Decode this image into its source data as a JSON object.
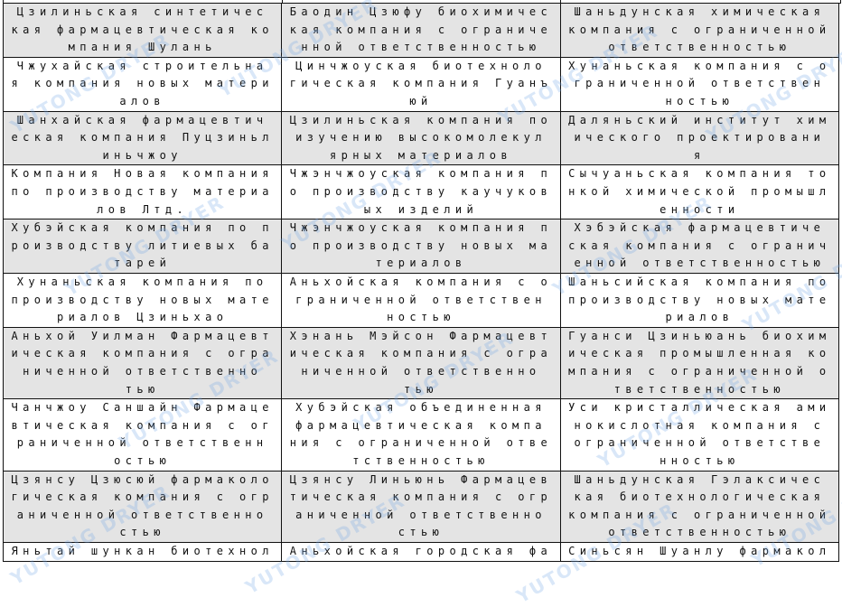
{
  "watermark": "YUTONG DRYER",
  "colors": {
    "row_gray": "#e4e4e4",
    "row_white": "#ffffff",
    "border": "#111111",
    "watermark": "#78aae6"
  },
  "table": {
    "rows": [
      {
        "shade": "gray",
        "cells": [
          [
            "Цзилиньская синтетичес",
            "кая фармацевтическая ко",
            "мпания Шулань"
          ],
          [
            "Баодин Цзюфу биохимичес",
            "кая компания с ограниче",
            "нной ответственностью"
          ],
          [
            "Шаньдунская химическая",
            "компания с ограниченной",
            "ответственностью"
          ]
        ]
      },
      {
        "shade": "white",
        "cells": [
          [
            "Чжухайская строительна",
            "я компания новых матери",
            "алов"
          ],
          [
            "Цинчжоуская биотехноло",
            "гическая компания Гуанъ",
            "юй"
          ],
          [
            "Хунаньская компания с о",
            "граниченной ответствен",
            "ностью"
          ]
        ]
      },
      {
        "shade": "gray",
        "cells": [
          [
            "Шанхайская фармацевтич",
            "еская компания Пуцзиньл",
            "иньчжоу"
          ],
          [
            "Цзилиньская компания по",
            "изучению высокомолекул",
            "ярных материалов"
          ],
          [
            "Даляньский институт хим",
            "ического проектировани",
            "я"
          ]
        ]
      },
      {
        "shade": "white",
        "cells": [
          [
            "Компания Новая компания",
            "по производству материа",
            "лов Лтд."
          ],
          [
            "Чжэнчжоуская компания п",
            "о производству каучуков",
            "ых изделий"
          ],
          [
            "Сычуаньская компания то",
            "нкой химической промышл",
            "енности"
          ]
        ]
      },
      {
        "shade": "gray",
        "cells": [
          [
            "Хубэйская компания по п",
            "роизводству литиевых ба",
            "тарей"
          ],
          [
            "Чжэнчжоуская компания п",
            "о производству новых ма",
            "териалов"
          ],
          [
            "Хэбэйская фармацевтиче",
            "ская компания с огранич",
            "енной ответственностью"
          ]
        ]
      },
      {
        "shade": "white",
        "cells": [
          [
            "Хунаньская компания по",
            "производству новых мате",
            "риалов Цзиньхао"
          ],
          [
            "Аньхойская компания с о",
            "граниченной ответствен",
            "ностью"
          ],
          [
            "Шаньсийская компания по",
            "производству новых мате",
            "риалов"
          ]
        ]
      },
      {
        "shade": "gray",
        "cells": [
          [
            "Аньхой Уилман Фармацевт",
            "ическая компания с огра",
            "ниченной ответственно",
            "тью"
          ],
          [
            "Хэнань Мэйсон Фармацевт",
            "ическая компания с огра",
            "ниченной ответственно",
            "тью"
          ],
          [
            "Гуанси Цзиньюань биохим",
            "ическая промышленная ко",
            "мпания с ограниченной о",
            "тветственностью"
          ]
        ]
      },
      {
        "shade": "white",
        "cells": [
          [
            "Чанчжоу Саншайн Фармаце",
            "втическая компания с ог",
            "раниченной ответственн",
            "остью"
          ],
          [
            "Хубэйская объединенная",
            "фармацевтическая компа",
            "ния с ограниченной отве",
            "тственностью"
          ],
          [
            "Уси кристаллическая ами",
            "нокислотная компания с",
            "ограниченной ответстве",
            "нностью"
          ]
        ]
      },
      {
        "shade": "gray",
        "cells": [
          [
            "Цзянсу Цзюсюй фармаколо",
            "гическая компания с огр",
            "аниченной ответственно",
            "стью"
          ],
          [
            "Цзянсу Линьюнь Фармацев",
            "тическая компания с огр",
            "аниченной ответственно",
            "стью"
          ],
          [
            "Шаньдунская Гэлаксичес",
            "кая биотехнологическая",
            "компания с ограниченной",
            "ответственностью"
          ]
        ]
      },
      {
        "shade": "white",
        "cells": [
          [
            "Яньтай шункан биотехнол"
          ],
          [
            "Аньхойская городская фа"
          ],
          [
            "Синьсян Шуанлу фармакол"
          ]
        ]
      }
    ]
  }
}
